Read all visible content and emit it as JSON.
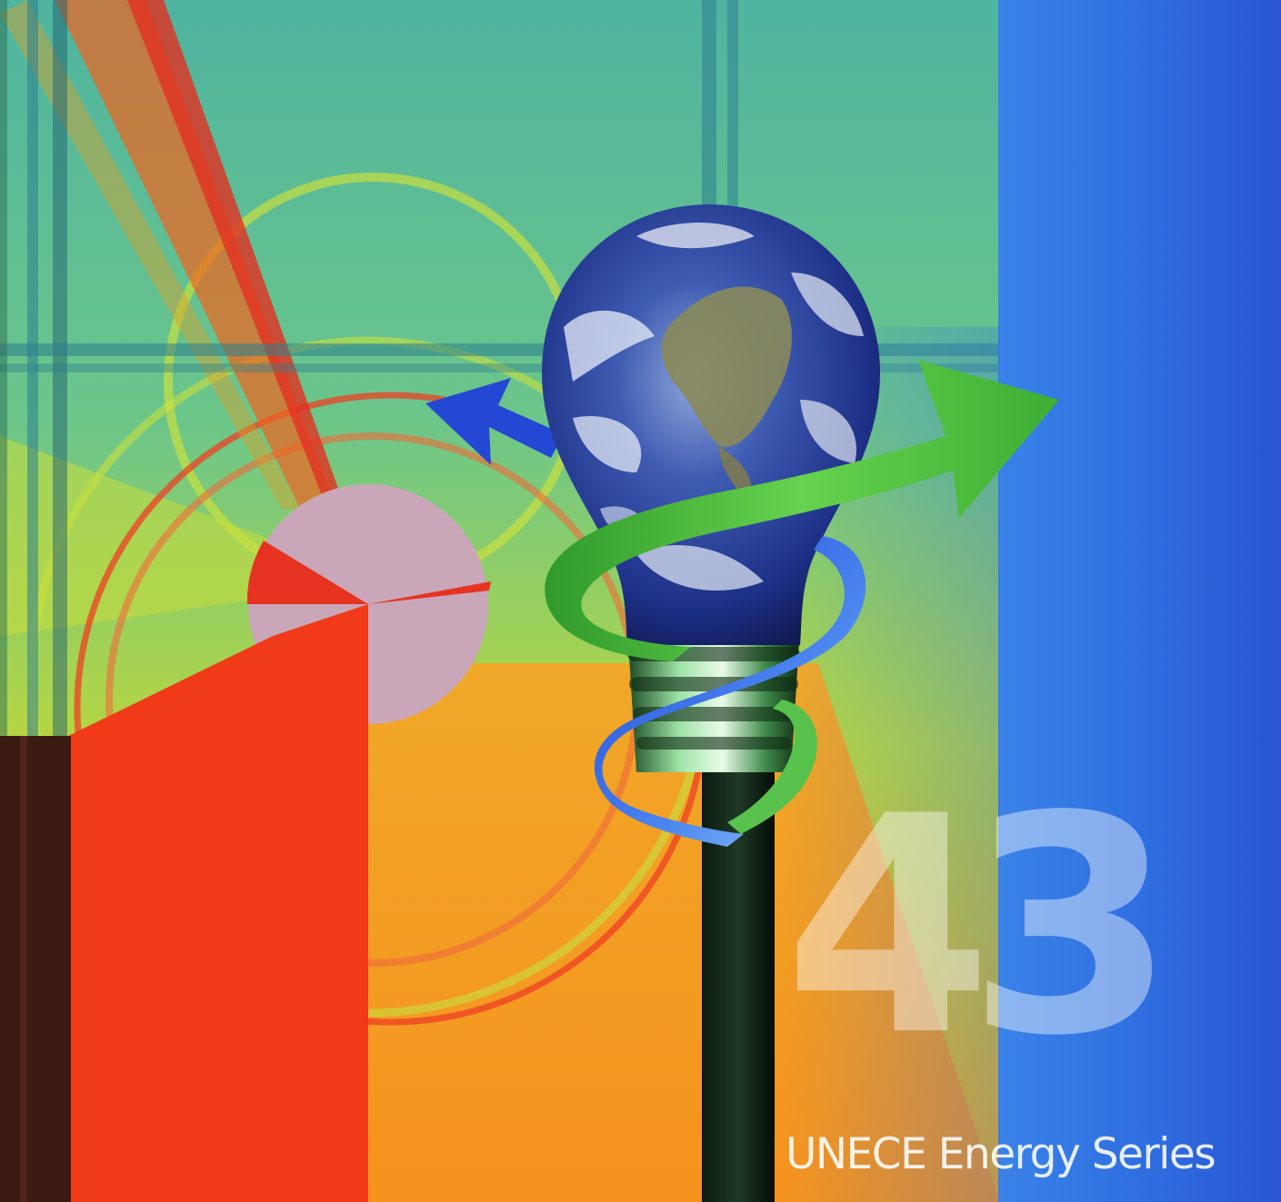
{
  "cover": {
    "volume_number": "43",
    "series_title": "UNECE Energy Series"
  },
  "colors": {
    "background_green": "#6cc68a",
    "side_band_blue": "#2f6fe0",
    "accent_red": "#f03a18",
    "accent_orange": "#f29a1e",
    "arrow_green": "#4bbf3a",
    "arrow_blue": "#2448d4"
  },
  "icons": {
    "main_illustration": "earth-lightbulb-icon",
    "green_arrow": "arrow-right-icon",
    "blue_arrow": "arrow-left-icon"
  }
}
